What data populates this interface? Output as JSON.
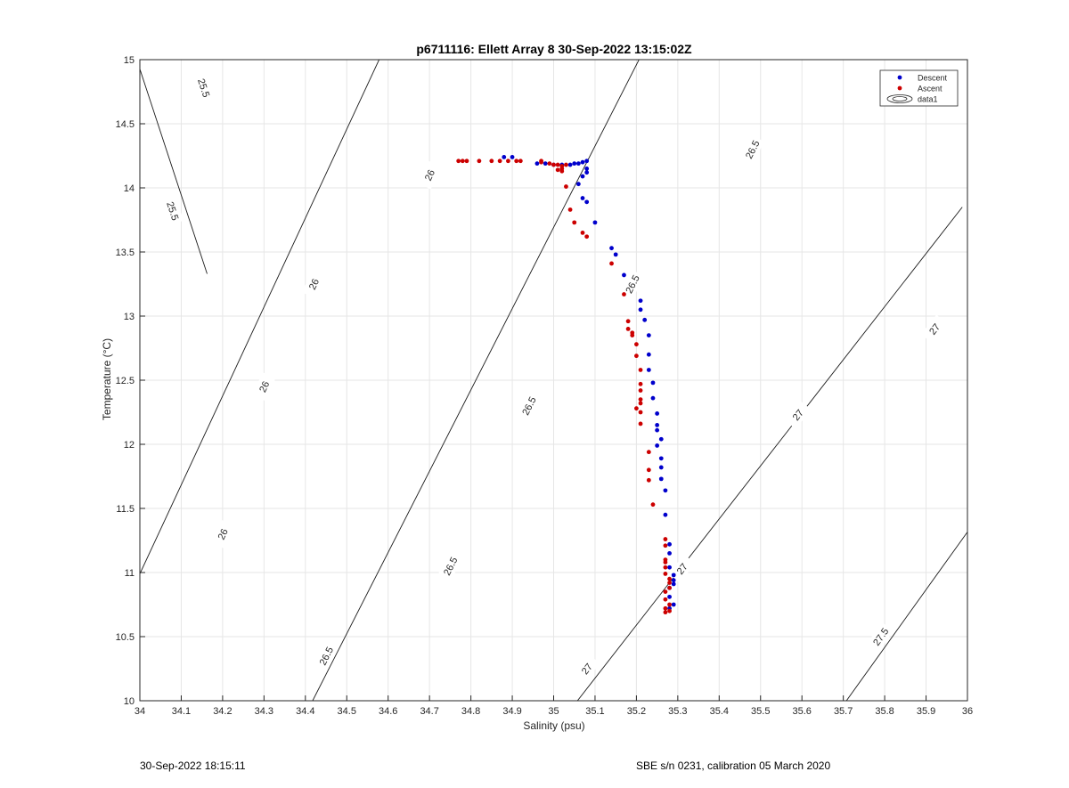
{
  "chart_data": {
    "type": "scatter",
    "title": "p6711116: Ellett Array 8 30-Sep-2022 13:15:02Z",
    "xlabel": "Salinity (psu)",
    "ylabel": "Temperature (°C)",
    "xlim": [
      34,
      36
    ],
    "ylim": [
      10,
      15
    ],
    "x_ticks": [
      34,
      34.1,
      34.2,
      34.3,
      34.4,
      34.5,
      34.6,
      34.7,
      34.8,
      34.9,
      35,
      35.1,
      35.2,
      35.3,
      35.4,
      35.5,
      35.6,
      35.7,
      35.8,
      35.9,
      36
    ],
    "x_tick_labels": [
      "34",
      "34.1",
      "34.2",
      "34.3",
      "34.4",
      "34.5",
      "34.6",
      "34.7",
      "34.8",
      "34.9",
      "35",
      "35.1",
      "35.2",
      "35.3",
      "35.4",
      "35.5",
      "35.6",
      "35.7",
      "35.8",
      "35.9",
      "36"
    ],
    "y_ticks": [
      10,
      10.5,
      11,
      11.5,
      12,
      12.5,
      13,
      13.5,
      14,
      14.5,
      15
    ],
    "y_tick_labels": [
      "10",
      "10.5",
      "11",
      "11.5",
      "12",
      "12.5",
      "13",
      "13.5",
      "14",
      "14.5",
      "15"
    ],
    "grid": true,
    "legend_position": "top-right",
    "legend": [
      "Descent",
      "Ascent",
      "data1"
    ],
    "series": [
      {
        "name": "Descent",
        "color": "#0000cc",
        "points": [
          [
            34.88,
            14.24
          ],
          [
            34.9,
            14.24
          ],
          [
            34.96,
            14.19
          ],
          [
            34.98,
            14.19
          ],
          [
            35.0,
            14.18
          ],
          [
            35.02,
            14.18
          ],
          [
            35.04,
            14.18
          ],
          [
            35.05,
            14.19
          ],
          [
            35.06,
            14.19
          ],
          [
            35.07,
            14.2
          ],
          [
            35.08,
            14.21
          ],
          [
            35.08,
            14.15
          ],
          [
            35.08,
            14.12
          ],
          [
            35.07,
            14.09
          ],
          [
            35.06,
            14.03
          ],
          [
            35.07,
            13.92
          ],
          [
            35.08,
            13.89
          ],
          [
            35.1,
            13.73
          ],
          [
            35.14,
            13.53
          ],
          [
            35.15,
            13.48
          ],
          [
            35.17,
            13.32
          ],
          [
            35.21,
            13.12
          ],
          [
            35.21,
            13.05
          ],
          [
            35.22,
            12.97
          ],
          [
            35.23,
            12.85
          ],
          [
            35.23,
            12.7
          ],
          [
            35.23,
            12.58
          ],
          [
            35.24,
            12.48
          ],
          [
            35.24,
            12.36
          ],
          [
            35.25,
            12.24
          ],
          [
            35.25,
            12.15
          ],
          [
            35.25,
            12.11
          ],
          [
            35.26,
            12.04
          ],
          [
            35.25,
            11.99
          ],
          [
            35.26,
            11.89
          ],
          [
            35.26,
            11.82
          ],
          [
            35.26,
            11.73
          ],
          [
            35.27,
            11.64
          ],
          [
            35.27,
            11.45
          ],
          [
            35.28,
            11.22
          ],
          [
            35.28,
            11.15
          ],
          [
            35.28,
            11.04
          ],
          [
            35.29,
            10.98
          ],
          [
            35.29,
            10.94
          ],
          [
            35.29,
            10.91
          ],
          [
            35.28,
            10.88
          ],
          [
            35.28,
            10.81
          ],
          [
            35.29,
            10.75
          ],
          [
            35.28,
            10.72
          ]
        ]
      },
      {
        "name": "Ascent",
        "color": "#cc0000",
        "points": [
          [
            34.77,
            14.21
          ],
          [
            34.78,
            14.21
          ],
          [
            34.79,
            14.21
          ],
          [
            34.82,
            14.21
          ],
          [
            34.85,
            14.21
          ],
          [
            34.87,
            14.21
          ],
          [
            34.89,
            14.21
          ],
          [
            34.91,
            14.21
          ],
          [
            34.92,
            14.21
          ],
          [
            34.97,
            14.21
          ],
          [
            34.97,
            14.2
          ],
          [
            34.99,
            14.19
          ],
          [
            35.0,
            14.18
          ],
          [
            35.01,
            14.18
          ],
          [
            35.02,
            14.17
          ],
          [
            35.02,
            14.15
          ],
          [
            35.01,
            14.14
          ],
          [
            35.02,
            14.13
          ],
          [
            35.03,
            14.18
          ],
          [
            35.03,
            14.01
          ],
          [
            35.04,
            13.83
          ],
          [
            35.05,
            13.73
          ],
          [
            35.07,
            13.65
          ],
          [
            35.08,
            13.62
          ],
          [
            35.14,
            13.41
          ],
          [
            35.17,
            13.17
          ],
          [
            35.18,
            12.96
          ],
          [
            35.18,
            12.9
          ],
          [
            35.19,
            12.87
          ],
          [
            35.19,
            12.85
          ],
          [
            35.2,
            12.78
          ],
          [
            35.2,
            12.69
          ],
          [
            35.21,
            12.58
          ],
          [
            35.21,
            12.47
          ],
          [
            35.21,
            12.42
          ],
          [
            35.21,
            12.35
          ],
          [
            35.21,
            12.32
          ],
          [
            35.2,
            12.28
          ],
          [
            35.21,
            12.25
          ],
          [
            35.21,
            12.16
          ],
          [
            35.23,
            11.94
          ],
          [
            35.23,
            11.8
          ],
          [
            35.23,
            11.72
          ],
          [
            35.24,
            11.53
          ],
          [
            35.27,
            11.26
          ],
          [
            35.27,
            11.21
          ],
          [
            35.27,
            11.1
          ],
          [
            35.27,
            11.08
          ],
          [
            35.27,
            11.04
          ],
          [
            35.27,
            10.99
          ],
          [
            35.28,
            10.95
          ],
          [
            35.28,
            10.92
          ],
          [
            35.28,
            10.88
          ],
          [
            35.27,
            10.85
          ],
          [
            35.27,
            10.79
          ],
          [
            35.28,
            10.75
          ],
          [
            35.27,
            10.72
          ],
          [
            35.28,
            10.7
          ],
          [
            35.27,
            10.69
          ]
        ]
      }
    ],
    "contour_label_text": [
      "25.5",
      "26",
      "26.5",
      "27",
      "27.5"
    ]
  },
  "footer": {
    "left": "30-Sep-2022 18:15:11",
    "right": "SBE s/n 0231, calibration 05 March 2020"
  }
}
